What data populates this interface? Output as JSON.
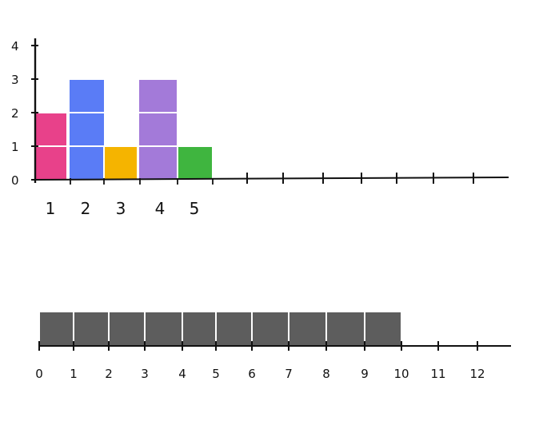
{
  "chart_data": [
    {
      "type": "bar",
      "categories": [
        "1",
        "2",
        "3",
        "4",
        "5"
      ],
      "values": [
        2,
        3,
        1,
        3,
        1
      ],
      "y_ticks": [
        "0",
        "1",
        "2",
        "3",
        "4"
      ],
      "ylim": [
        0,
        4
      ],
      "colors": [
        "#e8418a",
        "#5a7cf6",
        "#f5b400",
        "#a37ad9",
        "#3fb53f"
      ],
      "note": "stacked unit blocks separated by white lines"
    },
    {
      "type": "bar",
      "categories": [
        "0",
        "1",
        "2",
        "3",
        "4",
        "5",
        "6",
        "7",
        "8",
        "9",
        "10",
        "11",
        "12"
      ],
      "filled_units": 10,
      "color": "#5d5d5d"
    }
  ]
}
